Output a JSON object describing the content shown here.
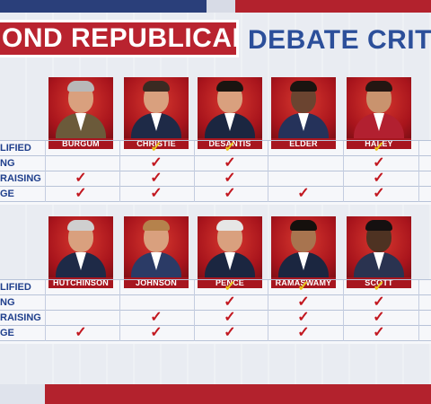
{
  "header": {
    "title_red": "OND REPUBLICAN",
    "title_blue": "DEBATE CRITE"
  },
  "criteria_labels": [
    "LIFIED",
    "NG",
    "RAISING",
    "GE"
  ],
  "colors": {
    "check_yellow": "#e9c21a",
    "check_red": "#c2171f",
    "label_blue": "#1f3f8c",
    "accent_red": "#b3222d"
  },
  "check_glyph": "✓",
  "group1": {
    "candidates": [
      {
        "name": "BURGUM",
        "hair": "#b8b8b8",
        "suit": "#6b5a3a"
      },
      {
        "name": "CHRISTIE",
        "hair": "#3a2a22",
        "suit": "#1e2a47"
      },
      {
        "name": "DESANTIS",
        "hair": "#1a1410",
        "suit": "#1b2640"
      },
      {
        "name": "ELDER",
        "hair": "#1a1410",
        "suit": "#25325a",
        "face": "#6b4430"
      },
      {
        "name": "HALEY",
        "hair": "#241612",
        "suit": "#b22030",
        "face": "#c9936e"
      }
    ],
    "checks": [
      [
        "",
        "yellow",
        "yellow",
        "",
        "yellow"
      ],
      [
        "",
        "red",
        "red",
        "",
        "red"
      ],
      [
        "red",
        "red",
        "red",
        "",
        "red"
      ],
      [
        "red",
        "red",
        "red",
        "red",
        "red"
      ]
    ]
  },
  "group2": {
    "candidates": [
      {
        "name": "HUTCHINSON",
        "hair": "#cfcfcf",
        "suit": "#1e2a47"
      },
      {
        "name": "JOHNSON",
        "hair": "#b5824c",
        "suit": "#2b3b66"
      },
      {
        "name": "PENCE",
        "hair": "#e6e6e6",
        "suit": "#1b2640"
      },
      {
        "name": "RAMASWAMY",
        "hair": "#15100d",
        "suit": "#1b2640",
        "face": "#a8744f"
      },
      {
        "name": "SCOTT",
        "hair": "#151010",
        "suit": "#2a3350",
        "face": "#4e3222"
      }
    ],
    "checks": [
      [
        "",
        "",
        "yellow",
        "yellow",
        "yellow"
      ],
      [
        "",
        "",
        "red",
        "red",
        "red"
      ],
      [
        "",
        "red",
        "red",
        "red",
        "red"
      ],
      [
        "red",
        "red",
        "red",
        "red",
        "red"
      ]
    ]
  }
}
